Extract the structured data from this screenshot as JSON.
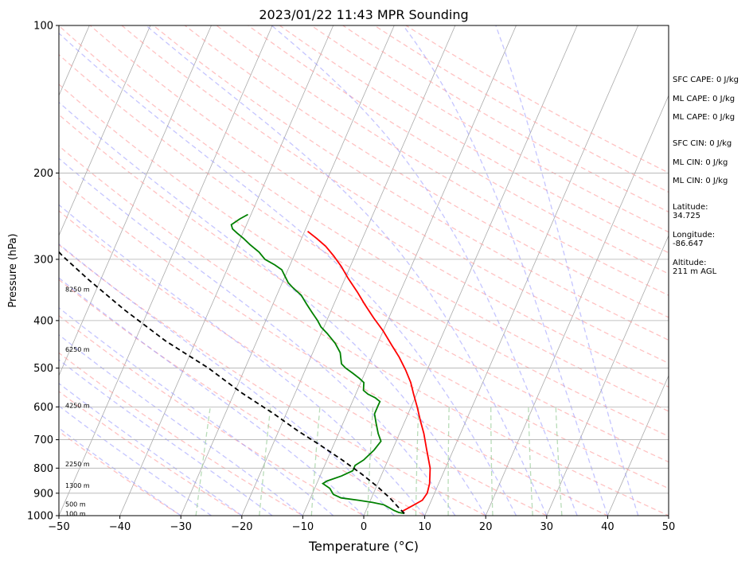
{
  "chart_data": {
    "type": "line",
    "title": "2023/01/22 11:43 MPR Sounding",
    "xlabel": "Temperature (°C)",
    "ylabel": "Pressure (hPa)",
    "xlim": [
      -50,
      50
    ],
    "ylim": [
      1000,
      100
    ],
    "y_scale": "log",
    "xticks": [
      -50,
      -40,
      -30,
      -20,
      -10,
      0,
      10,
      20,
      30,
      40,
      50
    ],
    "yticks": [
      100,
      200,
      300,
      400,
      500,
      600,
      700,
      800,
      900,
      1000
    ],
    "grid": "horizontal at pressure ticks",
    "skew": "skew-T log-P",
    "series": [
      {
        "color": "#ff0000",
        "points": [
          [
            6.5,
            990
          ],
          [
            6,
            980
          ],
          [
            7,
            960
          ],
          [
            8.5,
            930
          ],
          [
            8.8,
            900
          ],
          [
            8.5,
            860
          ],
          [
            7.5,
            800
          ],
          [
            5.5,
            730
          ],
          [
            4,
            680
          ],
          [
            2.5,
            640
          ],
          [
            1,
            600
          ],
          [
            -0.5,
            565
          ],
          [
            -1.8,
            535
          ],
          [
            -3.5,
            505
          ],
          [
            -5.5,
            475
          ],
          [
            -7.5,
            450
          ],
          [
            -10,
            420
          ],
          [
            -12.5,
            395
          ],
          [
            -15,
            370
          ],
          [
            -17,
            350
          ],
          [
            -19.5,
            328
          ],
          [
            -21.5,
            310
          ],
          [
            -23.5,
            295
          ],
          [
            -25.5,
            282
          ],
          [
            -27.5,
            272
          ],
          [
            -29.5,
            263
          ]
        ]
      },
      {
        "color": "#008000",
        "points": [
          [
            6.5,
            990
          ],
          [
            5.5,
            985
          ],
          [
            4.5,
            975
          ],
          [
            3.5,
            962
          ],
          [
            2.5,
            950
          ],
          [
            0.5,
            940
          ],
          [
            -2,
            930
          ],
          [
            -5,
            920
          ],
          [
            -6.5,
            905
          ],
          [
            -7.5,
            880
          ],
          [
            -9,
            860
          ],
          [
            -8.5,
            850
          ],
          [
            -6.5,
            830
          ],
          [
            -5,
            810
          ],
          [
            -5,
            790
          ],
          [
            -4,
            770
          ],
          [
            -3,
            735
          ],
          [
            -2.5,
            705
          ],
          [
            -3.5,
            680
          ],
          [
            -4.5,
            650
          ],
          [
            -5.5,
            620
          ],
          [
            -5.5,
            600
          ],
          [
            -5.5,
            585
          ],
          [
            -6.5,
            575
          ],
          [
            -8,
            565
          ],
          [
            -9,
            555
          ],
          [
            -9.5,
            535
          ],
          [
            -10.5,
            525
          ],
          [
            -12,
            512
          ],
          [
            -13.5,
            500
          ],
          [
            -14.5,
            490
          ],
          [
            -15.5,
            465
          ],
          [
            -17,
            445
          ],
          [
            -19,
            425
          ],
          [
            -20.5,
            412
          ],
          [
            -21.5,
            400
          ],
          [
            -23,
            385
          ],
          [
            -24.5,
            370
          ],
          [
            -26,
            355
          ],
          [
            -28,
            342
          ],
          [
            -29,
            335
          ],
          [
            -30,
            325
          ],
          [
            -31,
            315
          ],
          [
            -32.5,
            308
          ],
          [
            -34.5,
            300
          ],
          [
            -36,
            290
          ],
          [
            -38,
            280
          ],
          [
            -39.5,
            272
          ],
          [
            -41,
            265
          ],
          [
            -42,
            260
          ],
          [
            -42.5,
            255
          ],
          [
            -41.5,
            248
          ],
          [
            -40.5,
            243
          ]
        ]
      },
      {
        "color": "#000000",
        "line_style": "dashed",
        "points": [
          [
            6.5,
            990
          ],
          [
            5,
            960
          ],
          [
            3,
            920
          ],
          [
            0,
            870
          ],
          [
            -3.5,
            820
          ],
          [
            -7.5,
            770
          ],
          [
            -12,
            720
          ],
          [
            -17,
            670
          ],
          [
            -22,
            620
          ],
          [
            -29,
            560
          ],
          [
            -36,
            500
          ],
          [
            -45,
            440
          ],
          [
            -54,
            380
          ],
          [
            -62,
            330
          ],
          [
            -68,
            295
          ],
          [
            -73,
            265
          ],
          [
            -76,
            250
          ],
          [
            -78,
            242
          ]
        ]
      }
    ],
    "height_labels": [
      {
        "text": "8250 m",
        "pressure": 345
      },
      {
        "text": "6250 m",
        "pressure": 458
      },
      {
        "text": "4250 m",
        "pressure": 596
      },
      {
        "text": "2250 m",
        "pressure": 784
      },
      {
        "text": "1300 m",
        "pressure": 868
      },
      {
        "text": "500 m",
        "pressure": 948
      },
      {
        "text": "100 m",
        "pressure": 990
      }
    ],
    "reference_lines": {
      "isotherms": {
        "color": "#aaaaaa",
        "from": -150,
        "to": 50,
        "step": 10
      },
      "dry_adiabats": {
        "color": "#ff9a9a",
        "dashed": true
      },
      "moist_adiabats": {
        "color": "#8c8cff",
        "dashed": true
      },
      "mixing_ratio": {
        "color": "#9acd9a",
        "dashed": true
      }
    }
  },
  "stats": [
    {
      "text": "SFC CAPE: 0 J/kg"
    },
    {
      "text": "ML CAPE: 0 J/kg"
    },
    {
      "text": "ML CAPE: 0 J/kg"
    },
    {
      "text": "SFC CIN: 0 J/kg"
    },
    {
      "text": "ML CIN: 0 J/kg"
    },
    {
      "text": "ML CIN: 0 J/kg"
    }
  ],
  "location": [
    {
      "label": "Latitude:",
      "value": "34.725"
    },
    {
      "label": "Longitude:",
      "value": "-86.647"
    },
    {
      "label": "Altitude:",
      "value": "211 m AGL"
    }
  ]
}
